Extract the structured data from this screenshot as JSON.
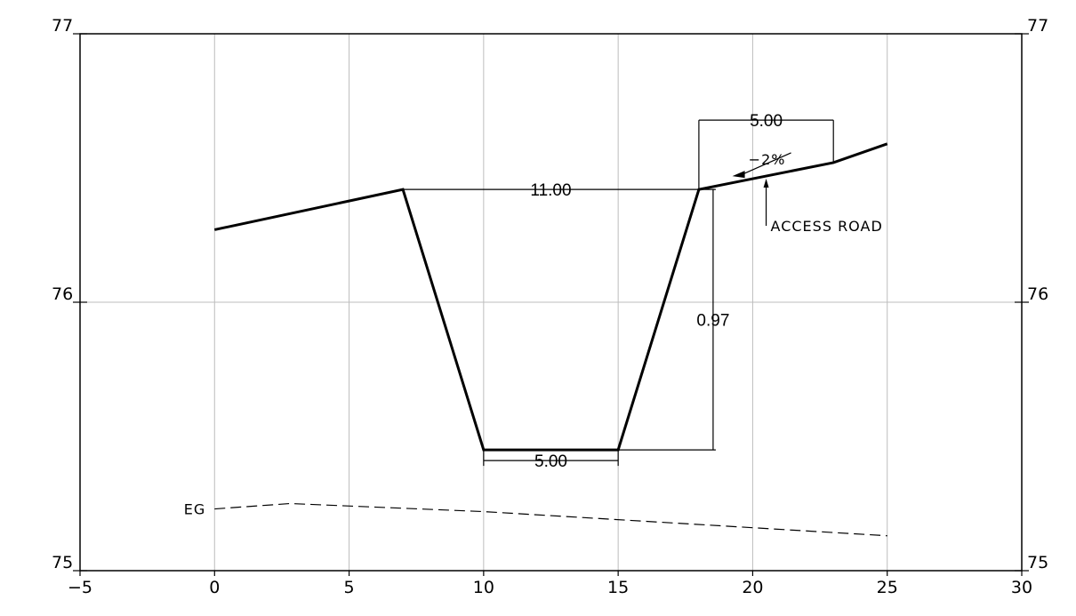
{
  "diagram": {
    "x_axis": {
      "min": -5,
      "max": 30,
      "ticks": [
        -5,
        0,
        5,
        10,
        15,
        20,
        25,
        30
      ]
    },
    "y_axis": {
      "min": 75,
      "max": 77,
      "ticks": [
        75,
        76,
        77
      ]
    },
    "x_tick_labels": [
      "−5",
      "0",
      "5",
      "10",
      "15",
      "20",
      "25",
      "30"
    ],
    "y_tick_labels": [
      "75",
      "76",
      "77"
    ],
    "proposed_profile": [
      [
        0,
        76.27
      ],
      [
        7,
        76.42
      ],
      [
        10,
        75.45
      ],
      [
        15,
        75.45
      ],
      [
        18,
        76.42
      ],
      [
        23,
        76.52
      ],
      [
        25,
        76.59
      ]
    ],
    "existing_ground": [
      [
        0,
        75.23
      ],
      [
        2.8,
        75.25
      ],
      [
        10,
        75.22
      ],
      [
        25,
        75.13
      ]
    ],
    "labels": {
      "top_width": "11.00",
      "bottom_width": "5.00",
      "depth": "0.97",
      "road_width": "5.00",
      "slope": "−2%",
      "access_road": "ACCESS ROAD",
      "existing_ground": "EG"
    },
    "colors": {
      "line": "#000000",
      "grid": "#bdbdbd"
    }
  }
}
